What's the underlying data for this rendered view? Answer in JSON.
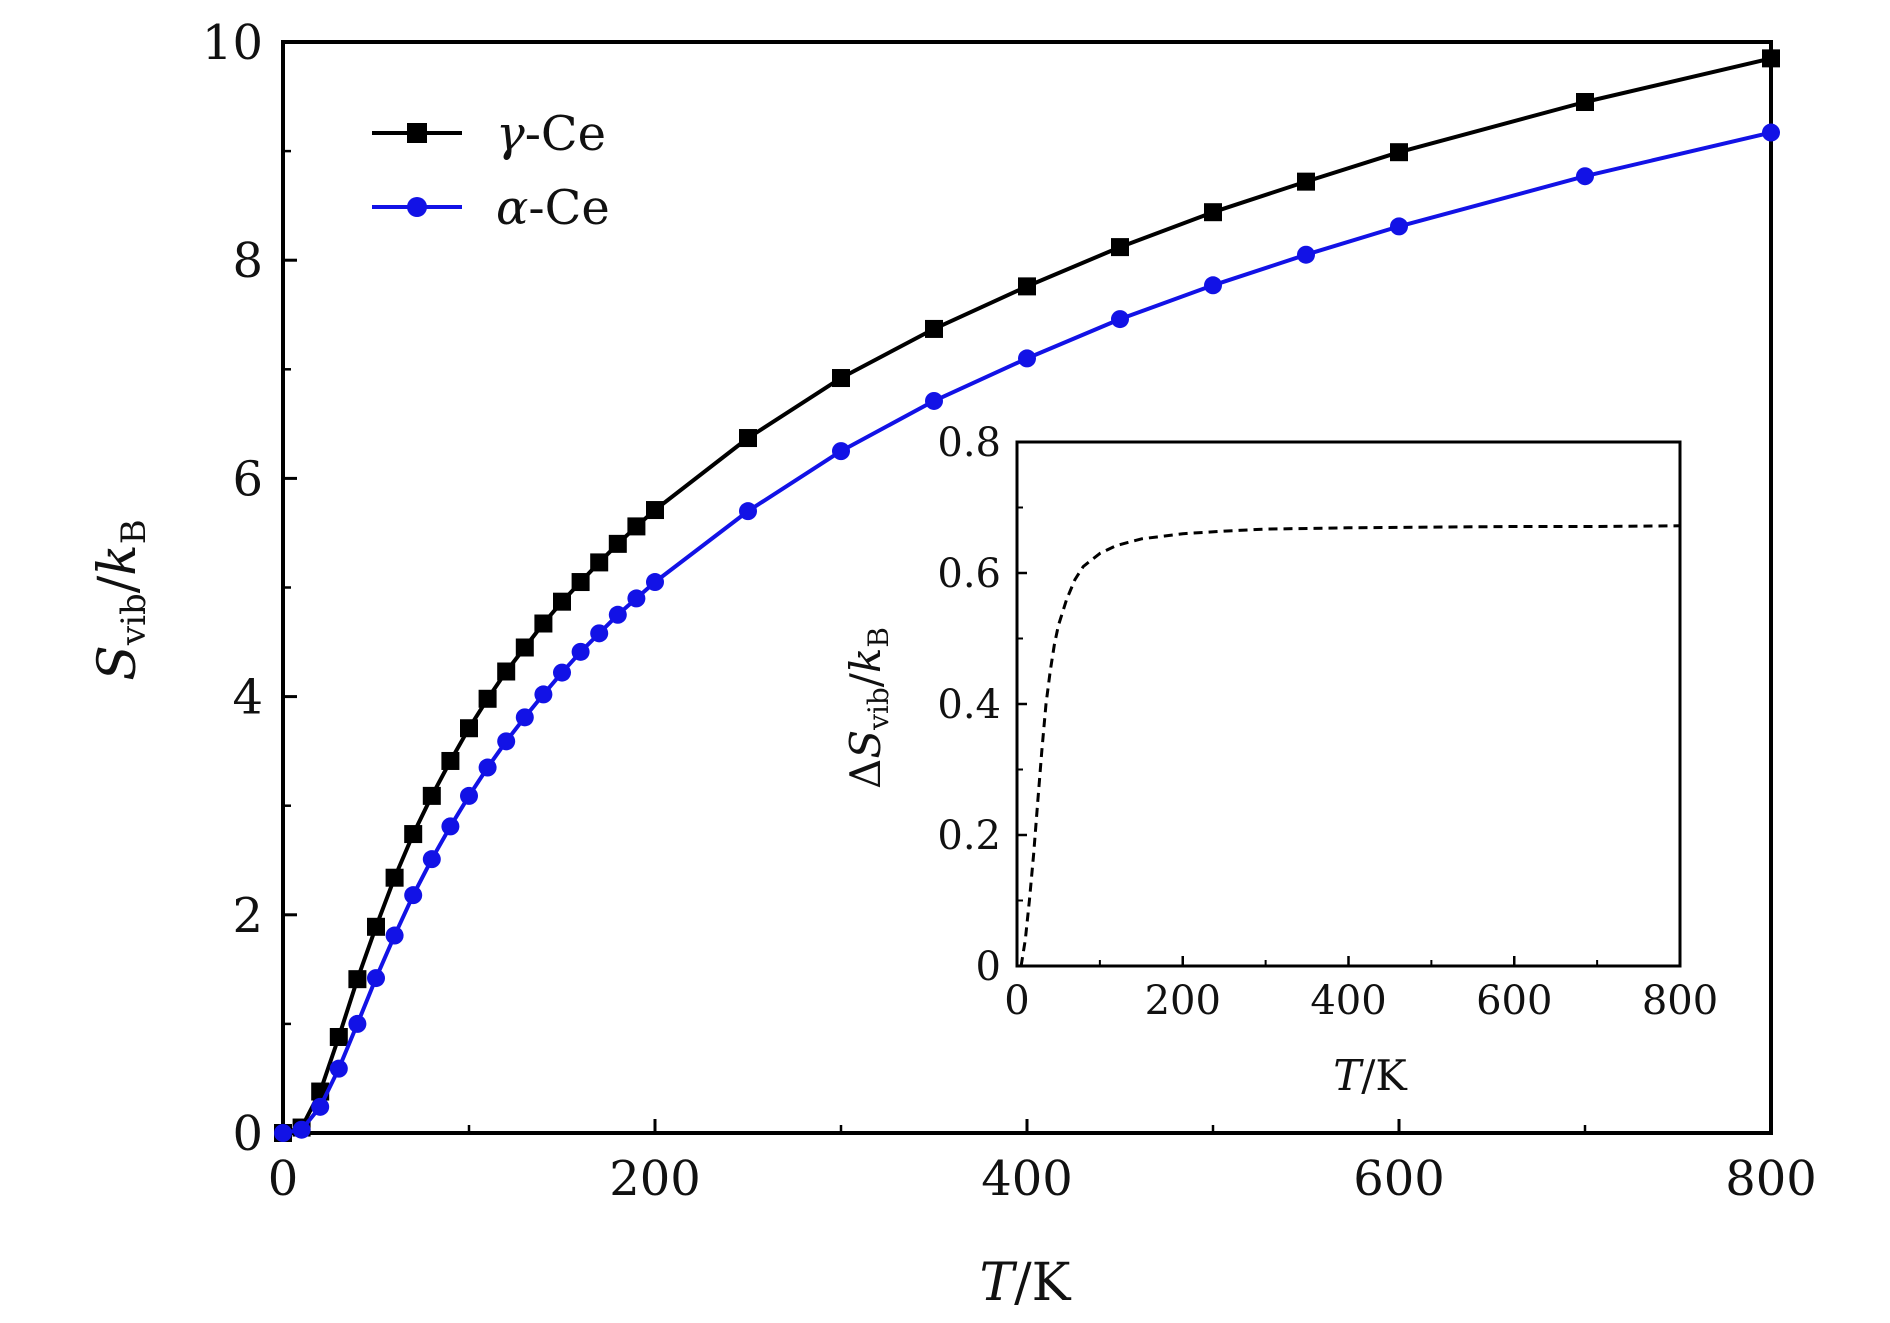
{
  "chart_data": [
    {
      "type": "line",
      "title": "",
      "xlabel": "T/K",
      "ylabel": "S_vib/k_B",
      "xlabel_parts": {
        "var": "T",
        "rest": "/K"
      },
      "ylabel_parts": {
        "var": "S",
        "sub": "vib",
        "sep": "/",
        "var2": "k",
        "sub2": "B"
      },
      "xlim": [
        0,
        800
      ],
      "ylim": [
        0,
        10
      ],
      "x_ticks": [
        "0",
        "200",
        "400",
        "600",
        "800"
      ],
      "y_ticks": [
        "0",
        "2",
        "4",
        "6",
        "8",
        "10"
      ],
      "legend_position": "top-left",
      "series": [
        {
          "name": "γ-Ce",
          "legend_symbol": "γ",
          "legend_rest": "-Ce",
          "color": "#000000",
          "marker": "square",
          "x": [
            0,
            10,
            20,
            30,
            40,
            50,
            60,
            70,
            80,
            90,
            100,
            110,
            120,
            130,
            140,
            150,
            160,
            170,
            180,
            190,
            200,
            250,
            300,
            350,
            400,
            450,
            500,
            550,
            600,
            700,
            800
          ],
          "values": [
            0.0,
            0.05,
            0.38,
            0.88,
            1.41,
            1.89,
            2.34,
            2.74,
            3.09,
            3.41,
            3.71,
            3.98,
            4.23,
            4.45,
            4.67,
            4.87,
            5.05,
            5.23,
            5.4,
            5.56,
            5.71,
            6.37,
            6.92,
            7.37,
            7.76,
            8.12,
            8.44,
            8.72,
            8.99,
            9.45,
            9.85
          ]
        },
        {
          "name": "α-Ce",
          "legend_symbol": "α",
          "legend_rest": "-Ce",
          "color": "#1212e6",
          "marker": "circle",
          "x": [
            0,
            10,
            20,
            30,
            40,
            50,
            60,
            70,
            80,
            90,
            100,
            110,
            120,
            130,
            140,
            150,
            160,
            170,
            180,
            190,
            200,
            250,
            300,
            350,
            400,
            450,
            500,
            550,
            600,
            700,
            800
          ],
          "values": [
            0.0,
            0.03,
            0.24,
            0.59,
            1.0,
            1.42,
            1.81,
            2.18,
            2.51,
            2.81,
            3.09,
            3.35,
            3.59,
            3.81,
            4.02,
            4.22,
            4.41,
            4.58,
            4.75,
            4.9,
            5.05,
            5.7,
            6.25,
            6.71,
            7.1,
            7.46,
            7.77,
            8.05,
            8.31,
            8.77,
            9.17
          ]
        }
      ]
    },
    {
      "type": "line",
      "title": "",
      "xlabel": "T/K",
      "ylabel": "ΔS_vib/k_B",
      "xlabel_parts": {
        "var": "T",
        "rest": "/K"
      },
      "ylabel_parts": {
        "pre": "Δ",
        "var": "S",
        "sub": "vib",
        "sep": "/",
        "var2": "k",
        "sub2": "B"
      },
      "xlim": [
        0,
        800
      ],
      "ylim": [
        0,
        0.8
      ],
      "x_ticks": [
        "0",
        "200",
        "400",
        "600",
        "800"
      ],
      "y_ticks": [
        "0",
        "0.2",
        "0.4",
        "0.6",
        "0.8"
      ],
      "series": [
        {
          "name": "ΔS_vib",
          "color": "#000000",
          "linestyle": "dashed",
          "x": [
            5,
            10,
            15,
            20,
            25,
            30,
            35,
            40,
            45,
            50,
            60,
            70,
            80,
            90,
            100,
            120,
            150,
            200,
            250,
            300,
            400,
            500,
            600,
            700,
            800
          ],
          "values": [
            0.0,
            0.04,
            0.1,
            0.17,
            0.25,
            0.33,
            0.4,
            0.45,
            0.49,
            0.52,
            0.56,
            0.59,
            0.61,
            0.62,
            0.63,
            0.642,
            0.652,
            0.66,
            0.664,
            0.667,
            0.669,
            0.67,
            0.671,
            0.671,
            0.672
          ]
        }
      ]
    }
  ]
}
